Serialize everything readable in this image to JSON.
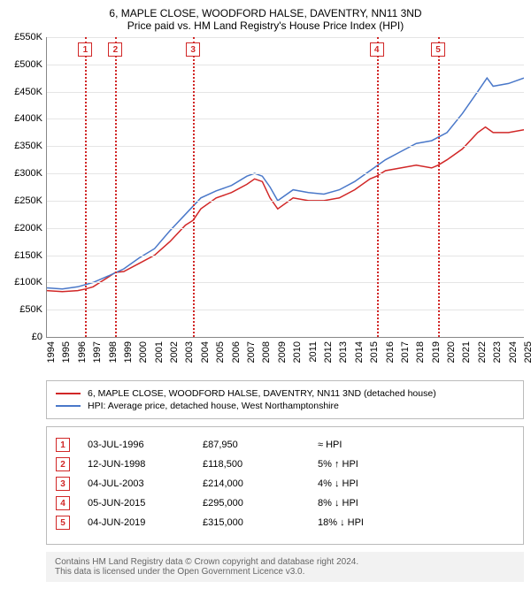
{
  "title_line1": "6, MAPLE CLOSE, WOODFORD HALSE, DAVENTRY, NN11 3ND",
  "title_line2": "Price paid vs. HM Land Registry's House Price Index (HPI)",
  "chart": {
    "type": "line",
    "y": {
      "min": 0,
      "max": 550000,
      "tick_step": 50000,
      "prefix": "£",
      "suffix": "K",
      "divisor": 1000
    },
    "x": {
      "min": 1994,
      "max": 2025,
      "tick_step": 1
    },
    "grid_color": "#e5e5e5",
    "axis_color": "#888888",
    "background_color": "#ffffff",
    "series": [
      {
        "name": "6, MAPLE CLOSE, WOODFORD HALSE, DAVENTRY, NN11 3ND (detached house)",
        "color": "#d12727",
        "line_width": 1.5,
        "points": [
          [
            1994.0,
            85000
          ],
          [
            1995.0,
            83000
          ],
          [
            1996.0,
            85000
          ],
          [
            1996.5,
            87950
          ],
          [
            1997.0,
            92000
          ],
          [
            1998.0,
            110000
          ],
          [
            1998.45,
            118500
          ],
          [
            1999.0,
            120000
          ],
          [
            2000.0,
            135000
          ],
          [
            2001.0,
            150000
          ],
          [
            2002.0,
            175000
          ],
          [
            2003.0,
            205000
          ],
          [
            2003.5,
            214000
          ],
          [
            2004.0,
            235000
          ],
          [
            2005.0,
            255000
          ],
          [
            2006.0,
            265000
          ],
          [
            2007.0,
            280000
          ],
          [
            2007.5,
            290000
          ],
          [
            2008.0,
            285000
          ],
          [
            2008.5,
            255000
          ],
          [
            2009.0,
            235000
          ],
          [
            2010.0,
            255000
          ],
          [
            2011.0,
            250000
          ],
          [
            2012.0,
            250000
          ],
          [
            2013.0,
            255000
          ],
          [
            2014.0,
            270000
          ],
          [
            2015.0,
            290000
          ],
          [
            2015.43,
            295000
          ],
          [
            2016.0,
            305000
          ],
          [
            2017.0,
            310000
          ],
          [
            2018.0,
            315000
          ],
          [
            2019.0,
            310000
          ],
          [
            2019.42,
            315000
          ],
          [
            2020.0,
            325000
          ],
          [
            2021.0,
            345000
          ],
          [
            2022.0,
            375000
          ],
          [
            2022.5,
            385000
          ],
          [
            2023.0,
            375000
          ],
          [
            2024.0,
            375000
          ],
          [
            2025.0,
            380000
          ]
        ]
      },
      {
        "name": "HPI: Average price, detached house, West Northamptonshire",
        "color": "#4a78c9",
        "line_width": 1.5,
        "points": [
          [
            1994.0,
            90000
          ],
          [
            1995.0,
            88000
          ],
          [
            1996.0,
            92000
          ],
          [
            1997.0,
            100000
          ],
          [
            1998.0,
            112000
          ],
          [
            1999.0,
            125000
          ],
          [
            2000.0,
            145000
          ],
          [
            2001.0,
            162000
          ],
          [
            2002.0,
            195000
          ],
          [
            2003.0,
            225000
          ],
          [
            2004.0,
            255000
          ],
          [
            2005.0,
            268000
          ],
          [
            2006.0,
            278000
          ],
          [
            2007.0,
            295000
          ],
          [
            2007.5,
            300000
          ],
          [
            2008.0,
            295000
          ],
          [
            2008.5,
            275000
          ],
          [
            2009.0,
            250000
          ],
          [
            2010.0,
            270000
          ],
          [
            2011.0,
            265000
          ],
          [
            2012.0,
            262000
          ],
          [
            2013.0,
            270000
          ],
          [
            2014.0,
            285000
          ],
          [
            2015.0,
            305000
          ],
          [
            2016.0,
            325000
          ],
          [
            2017.0,
            340000
          ],
          [
            2018.0,
            355000
          ],
          [
            2019.0,
            360000
          ],
          [
            2020.0,
            375000
          ],
          [
            2021.0,
            410000
          ],
          [
            2022.0,
            450000
          ],
          [
            2022.6,
            475000
          ],
          [
            2023.0,
            460000
          ],
          [
            2024.0,
            465000
          ],
          [
            2025.0,
            475000
          ]
        ]
      }
    ],
    "markers": [
      {
        "n": "1",
        "year": 1996.5,
        "color": "#d12727"
      },
      {
        "n": "2",
        "year": 1998.45,
        "color": "#d12727"
      },
      {
        "n": "3",
        "year": 2003.5,
        "color": "#d12727"
      },
      {
        "n": "4",
        "year": 2015.43,
        "color": "#d12727"
      },
      {
        "n": "5",
        "year": 2019.42,
        "color": "#d12727"
      }
    ]
  },
  "legend": [
    {
      "color": "#d12727",
      "label": "6, MAPLE CLOSE, WOODFORD HALSE, DAVENTRY, NN11 3ND (detached house)"
    },
    {
      "color": "#4a78c9",
      "label": "HPI: Average price, detached house, West Northamptonshire"
    }
  ],
  "transactions": [
    {
      "n": "1",
      "color": "#d12727",
      "date": "03-JUL-1996",
      "price": "£87,950",
      "diff": "≈ HPI"
    },
    {
      "n": "2",
      "color": "#d12727",
      "date": "12-JUN-1998",
      "price": "£118,500",
      "diff": "5% ↑ HPI"
    },
    {
      "n": "3",
      "color": "#d12727",
      "date": "04-JUL-2003",
      "price": "£214,000",
      "diff": "4% ↓ HPI"
    },
    {
      "n": "4",
      "color": "#d12727",
      "date": "05-JUN-2015",
      "price": "£295,000",
      "diff": "8% ↓ HPI"
    },
    {
      "n": "5",
      "color": "#d12727",
      "date": "04-JUN-2019",
      "price": "£315,000",
      "diff": "18% ↓ HPI"
    }
  ],
  "footer_line1": "Contains HM Land Registry data © Crown copyright and database right 2024.",
  "footer_line2": "This data is licensed under the Open Government Licence v3.0."
}
